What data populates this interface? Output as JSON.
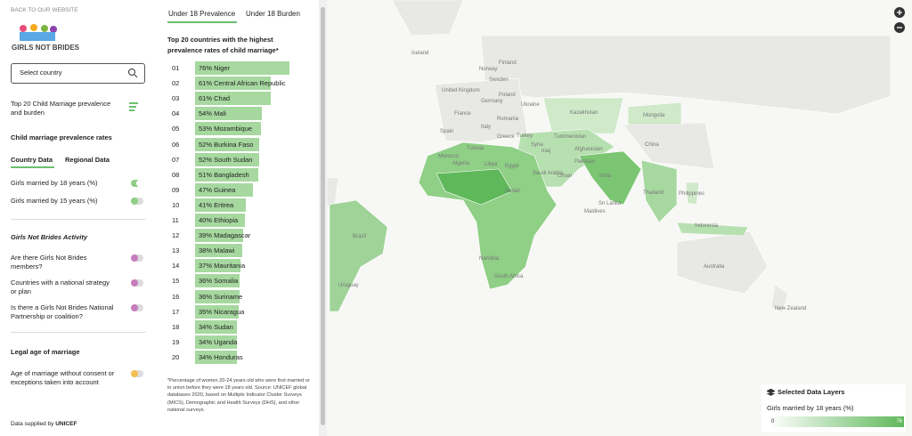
{
  "sidebar": {
    "back_link": "BACK TO OUR WEBSITE",
    "logo": "GIRLS NOT BRIDES",
    "search_placeholder": "Select country",
    "top20_link": "Top 20 Child Marriage prevalence and burden",
    "prevalence_heading": "Child marriage prevalence rates",
    "tabs": [
      "Country Data",
      "Regional Data"
    ],
    "prevalence_layers": [
      "Girls married by 18 years (%)",
      "Girls married by 15 years (%)"
    ],
    "activity_heading": "Girls Not Brides Activity",
    "activity_layers": [
      "Are there Girls Not Brides members?",
      "Countries with a national strategy or plan",
      "Is there a Girls Not Brides National Partnership or coalition?"
    ],
    "legal_heading": "Legal age of marriage",
    "legal_layers": [
      "Age of marriage without consent or exceptions taken into account"
    ],
    "footer_prefix": "Data supplied by",
    "footer_source": "UNICEF"
  },
  "ranking": {
    "tabs": [
      "Under 18 Prevalence",
      "Under 18 Burden"
    ],
    "title": "Top 20 countries with the highest prevalence rates of child marriage*",
    "rows": [
      {
        "rank": "01",
        "value": 76,
        "value_label": "76%",
        "country": "Niger"
      },
      {
        "rank": "02",
        "value": 61,
        "value_label": "61%",
        "country": "Central African Republic"
      },
      {
        "rank": "03",
        "value": 61,
        "value_label": "61%",
        "country": "Chad"
      },
      {
        "rank": "04",
        "value": 54,
        "value_label": "54%",
        "country": "Mali"
      },
      {
        "rank": "05",
        "value": 53,
        "value_label": "53%",
        "country": "Mozambique"
      },
      {
        "rank": "06",
        "value": 52,
        "value_label": "52%",
        "country": "Burkina Faso"
      },
      {
        "rank": "07",
        "value": 52,
        "value_label": "52%",
        "country": "South Sudan"
      },
      {
        "rank": "08",
        "value": 51,
        "value_label": "51%",
        "country": "Bangladesh"
      },
      {
        "rank": "09",
        "value": 47,
        "value_label": "47%",
        "country": "Guinea"
      },
      {
        "rank": "10",
        "value": 41,
        "value_label": "41%",
        "country": "Eritrea"
      },
      {
        "rank": "11",
        "value": 40,
        "value_label": "40%",
        "country": "Ethiopia"
      },
      {
        "rank": "12",
        "value": 39,
        "value_label": "39%",
        "country": "Madagascar"
      },
      {
        "rank": "13",
        "value": 38,
        "value_label": "38%",
        "country": "Malawi"
      },
      {
        "rank": "14",
        "value": 37,
        "value_label": "37%",
        "country": "Mauritania"
      },
      {
        "rank": "15",
        "value": 36,
        "value_label": "36%",
        "country": "Somalia"
      },
      {
        "rank": "16",
        "value": 36,
        "value_label": "36%",
        "country": "Suriname"
      },
      {
        "rank": "17",
        "value": 35,
        "value_label": "35%",
        "country": "Nicaragua"
      },
      {
        "rank": "18",
        "value": 34,
        "value_label": "34%",
        "country": "Sudan"
      },
      {
        "rank": "19",
        "value": 34,
        "value_label": "34%",
        "country": "Uganda"
      },
      {
        "rank": "20",
        "value": 34,
        "value_label": "34%",
        "country": "Honduras"
      }
    ],
    "footnote": "*Percentage of women 20-24 years old who were first married or in union before they were 18 years old. Source: UNICEF global databases 2020, based on Multiple Indicator Cluster Surveys (MICS), Demographic and Health Surveys (DHS), and other national surveys."
  },
  "map": {
    "labels": [
      "Iceland",
      "Norway",
      "Finland",
      "Sweden",
      "United Kingdom",
      "Germany",
      "Poland",
      "Ukraine",
      "France",
      "Romania",
      "Italy",
      "Spain",
      "Greece",
      "Turkey",
      "Kazakhstan",
      "Mongolia",
      "Tunisia",
      "Syria",
      "Iraq",
      "Turkmenistan",
      "Afghanistan",
      "Pakistan",
      "China",
      "Morocco",
      "Algeria",
      "Libya",
      "Egypt",
      "Saudi Arabia",
      "Oman",
      "India",
      "Thailand",
      "Philippines",
      "Sudan",
      "Sri Lanka",
      "Maldives",
      "Indonesia",
      "Brazil",
      "Namibia",
      "South Africa",
      "Australia",
      "New Zealand",
      "Uruguay"
    ],
    "legend": {
      "title": "Selected Data Layers",
      "layer": "Girls married by 18 years (%)",
      "min": 0,
      "max": 76
    }
  }
}
